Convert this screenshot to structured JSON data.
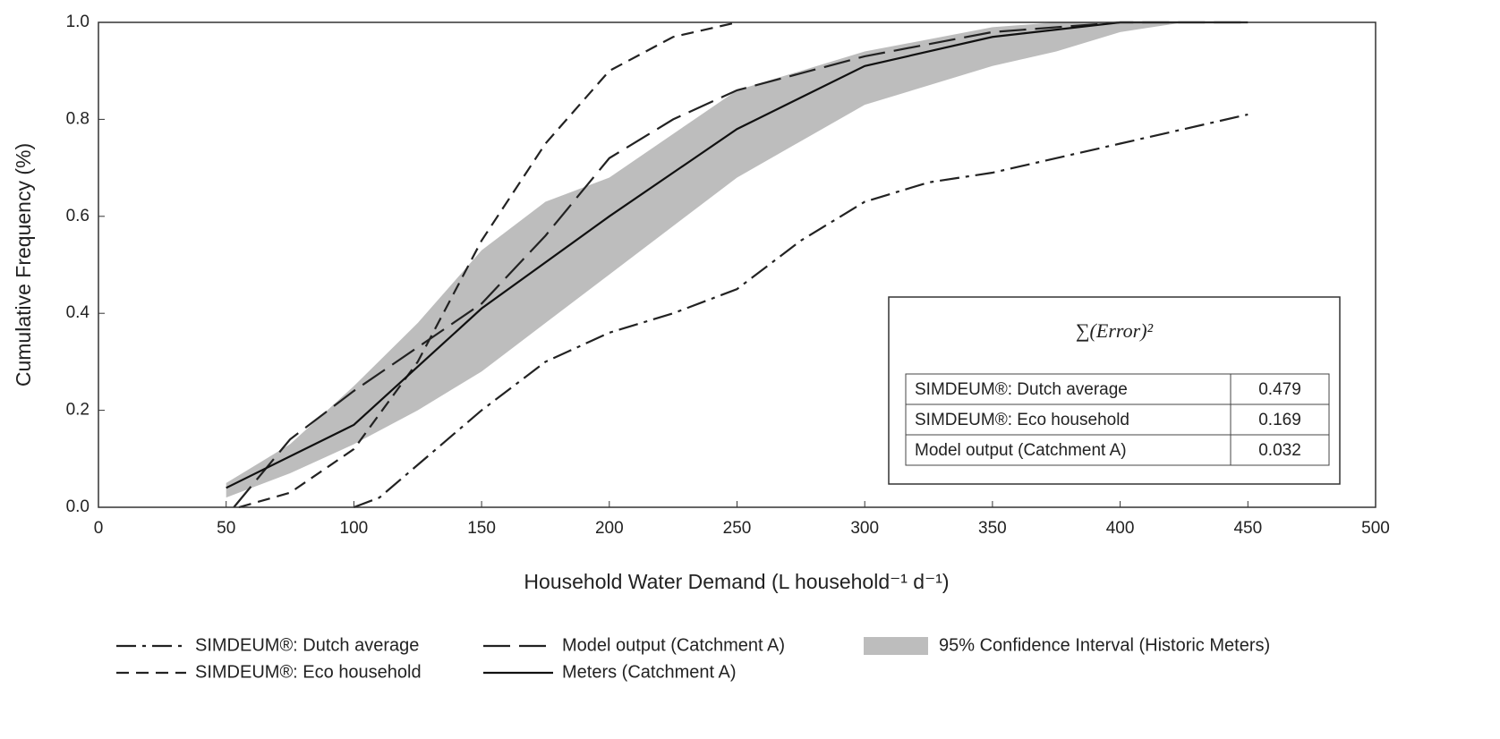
{
  "chart_data": {
    "type": "line",
    "x_label": "Household Water Demand (L household⁻¹ d⁻¹)",
    "y_label": "Cumulative Frequency (%)",
    "xlim": [
      0,
      500
    ],
    "xticks": [
      0,
      50,
      100,
      150,
      200,
      250,
      300,
      350,
      400,
      450,
      500
    ],
    "ylim": [
      0,
      1
    ],
    "yticks": [
      {
        "value": 0,
        "label": "0.0"
      },
      0.2,
      0.4,
      0.6,
      0.8,
      {
        "value": 1,
        "label": "1.0"
      }
    ],
    "band": {
      "name": "95% Confidence Interval (Historic Meters)",
      "color": "#bdbdbd",
      "x": [
        50,
        75,
        100,
        125,
        150,
        175,
        200,
        250,
        300,
        350,
        375,
        400,
        425,
        450
      ],
      "lower": [
        0.02,
        0.07,
        0.13,
        0.2,
        0.28,
        0.38,
        0.48,
        0.68,
        0.83,
        0.91,
        0.94,
        0.98,
        1.0,
        1.0
      ],
      "upper": [
        0.05,
        0.13,
        0.25,
        0.38,
        0.53,
        0.63,
        0.68,
        0.86,
        0.94,
        0.99,
        1.0,
        1.0,
        1.0,
        1.0
      ]
    },
    "series": [
      {
        "name": "SIMDEUM®: Dutch average",
        "color": "#222222",
        "dash": "dash-dot",
        "x": [
          100,
          110,
          150,
          175,
          200,
          225,
          250,
          275,
          300,
          325,
          350,
          400,
          450
        ],
        "values": [
          0.0,
          0.02,
          0.2,
          0.3,
          0.36,
          0.4,
          0.45,
          0.55,
          0.63,
          0.67,
          0.69,
          0.75,
          0.81
        ]
      },
      {
        "name": "SIMDEUM®: Eco household",
        "color": "#222222",
        "dash": "short-dash",
        "x": [
          55,
          75,
          100,
          125,
          150,
          175,
          200,
          225,
          250
        ],
        "values": [
          0.0,
          0.03,
          0.12,
          0.3,
          0.55,
          0.75,
          0.9,
          0.97,
          1.0
        ]
      },
      {
        "name": "Model output (Catchment A)",
        "color": "#222222",
        "dash": "long-dash",
        "x": [
          53,
          75,
          100,
          125,
          150,
          175,
          200,
          225,
          250,
          300,
          350,
          400,
          450
        ],
        "values": [
          0.0,
          0.14,
          0.24,
          0.33,
          0.42,
          0.56,
          0.72,
          0.8,
          0.86,
          0.93,
          0.98,
          1.0,
          1.0
        ]
      },
      {
        "name": "Meters (Catchment A)",
        "color": "#111111",
        "dash": "solid",
        "x": [
          50,
          100,
          150,
          200,
          250,
          300,
          350,
          400,
          450
        ],
        "values": [
          0.04,
          0.17,
          0.41,
          0.6,
          0.78,
          0.91,
          0.97,
          1.0,
          1.0
        ]
      }
    ],
    "error_table": {
      "title": "∑(Error)²",
      "rows": [
        [
          "SIMDEUM®: Dutch average",
          0.479
        ],
        [
          "SIMDEUM®: Eco household",
          0.169
        ],
        [
          "Model output (Catchment A)",
          0.032
        ]
      ]
    }
  }
}
